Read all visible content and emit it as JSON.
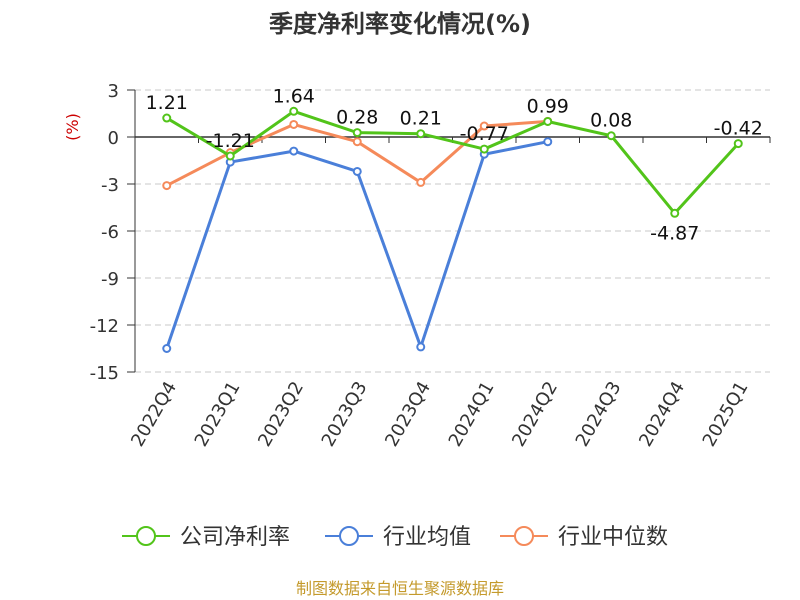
{
  "chart_data": {
    "type": "line",
    "title": "季度净利率变化情况(%)",
    "ylabel": "(%)",
    "xlabel": "",
    "categories": [
      "2022Q4",
      "2023Q1",
      "2023Q2",
      "2023Q3",
      "2023Q4",
      "2024Q1",
      "2024Q2",
      "2024Q3",
      "2024Q4",
      "2025Q1"
    ],
    "ylim": [
      -15,
      3
    ],
    "yticks": [
      3,
      0,
      -3,
      -6,
      -9,
      -12,
      -15
    ],
    "grid": true,
    "legend_position": "bottom",
    "series": [
      {
        "name": "公司净利率",
        "color": "#52c41a",
        "values": [
          1.21,
          -1.21,
          1.64,
          0.28,
          0.21,
          -0.77,
          0.99,
          0.08,
          -4.87,
          -0.42
        ],
        "labels": [
          "1.21",
          "-1.21",
          "1.64",
          "0.28",
          "0.21",
          "-0.77",
          "0.99",
          "0.08",
          "-4.87",
          "-0.42"
        ]
      },
      {
        "name": "行业均值",
        "color": "#4a7fd9",
        "values": [
          -13.5,
          -1.6,
          -0.9,
          -2.2,
          -13.4,
          -1.1,
          -0.3,
          null,
          null,
          null
        ]
      },
      {
        "name": "行业中位数",
        "color": "#f58a5a",
        "values": [
          -3.1,
          -1.0,
          0.8,
          -0.3,
          -2.9,
          0.7,
          1.0,
          null,
          null,
          null
        ]
      }
    ]
  },
  "source": "制图数据来自恒生聚源数据库"
}
